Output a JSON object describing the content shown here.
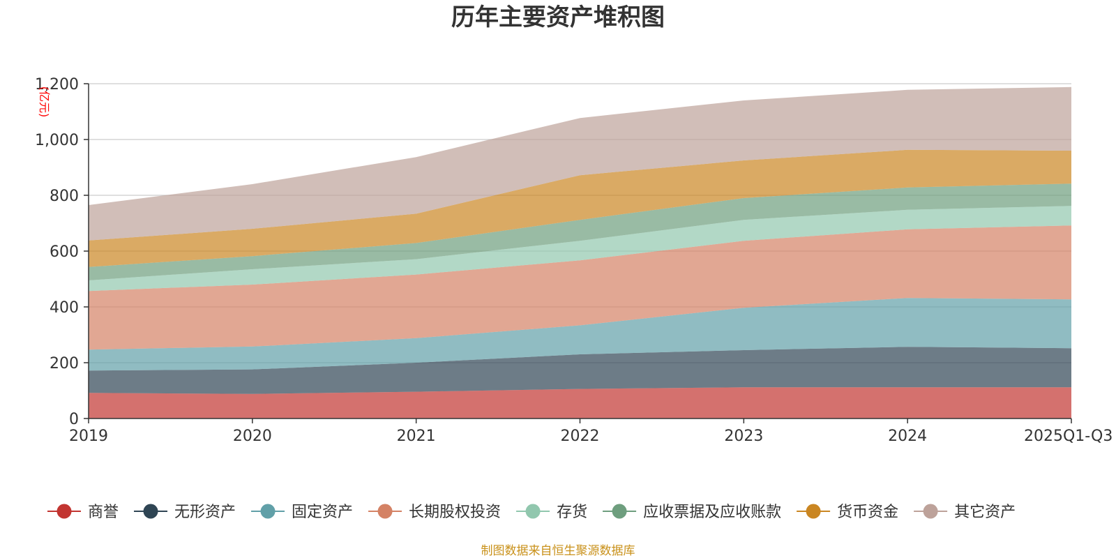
{
  "chart_data": {
    "type": "area",
    "stacked": true,
    "title": "历年主要资产堆积图",
    "ylabel": "亿元",
    "ylim": [
      0,
      1200
    ],
    "yticks": [
      0,
      200,
      400,
      600,
      800,
      1000,
      1200
    ],
    "ytick_labels": [
      "0",
      "200",
      "400",
      "600",
      "800",
      "1,000",
      "1,200"
    ],
    "categories": [
      "2019",
      "2020",
      "2021",
      "2022",
      "2023",
      "2024",
      "2025Q1-Q3"
    ],
    "grid": true,
    "legend_position": "bottom",
    "series": [
      {
        "name": "商誉",
        "color": "#c23531",
        "values": [
          92,
          88,
          96,
          106,
          112,
          112,
          112
        ]
      },
      {
        "name": "无形资产",
        "color": "#2f4554",
        "values": [
          80,
          88,
          104,
          124,
          133,
          145,
          140
        ]
      },
      {
        "name": "固定资产",
        "color": "#61a0a8",
        "values": [
          75,
          82,
          88,
          104,
          152,
          175,
          175
        ]
      },
      {
        "name": "长期股权投资",
        "color": "#d48265",
        "values": [
          210,
          222,
          228,
          233,
          240,
          246,
          265
        ]
      },
      {
        "name": "存货",
        "color": "#91c7ae",
        "values": [
          38,
          55,
          55,
          70,
          75,
          70,
          70
        ]
      },
      {
        "name": "应收票据及应收账款",
        "color": "#6e9e7e",
        "values": [
          48,
          47,
          58,
          75,
          78,
          80,
          80
        ]
      },
      {
        "name": "货币资金",
        "color": "#ca8622",
        "values": [
          95,
          98,
          105,
          160,
          135,
          135,
          118
        ]
      },
      {
        "name": "其它资产",
        "color": "#bda29a",
        "values": [
          127,
          160,
          203,
          205,
          215,
          215,
          228
        ]
      }
    ],
    "source": "制图数据来自恒生聚源数据库"
  }
}
